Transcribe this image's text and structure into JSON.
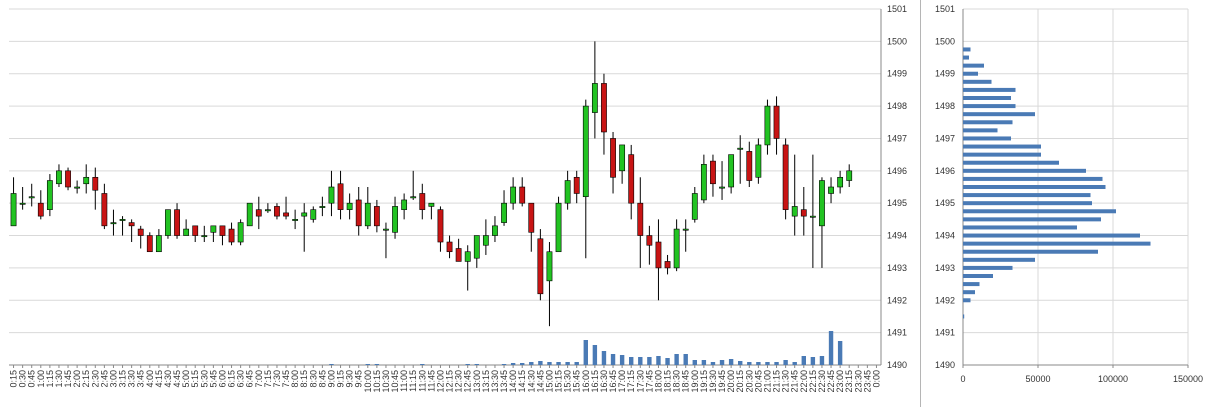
{
  "chart_data": [
    {
      "type": "candlestick",
      "y_axis_position": "right",
      "ylim": [
        1490,
        1501
      ],
      "y_ticks": [
        "1501",
        "1500",
        "1499",
        "1498",
        "1497",
        "1496",
        "1495",
        "1494",
        "1493",
        "1492",
        "1491",
        "1490"
      ],
      "grid": true,
      "colors": {
        "up": "#22c322",
        "down": "#c81414",
        "volume": "#4a7ab5",
        "grid": "#d9d9d9"
      },
      "x_labels": [
        "0:15",
        "0:30",
        "0:45",
        "1:00",
        "1:15",
        "1:30",
        "1:45",
        "2:00",
        "2:15",
        "2:30",
        "2:45",
        "3:00",
        "3:15",
        "3:30",
        "3:45",
        "4:00",
        "4:15",
        "4:30",
        "4:45",
        "5:00",
        "5:15",
        "5:30",
        "5:45",
        "6:00",
        "6:15",
        "6:30",
        "6:45",
        "7:00",
        "7:15",
        "7:30",
        "7:45",
        "8:00",
        "8:15",
        "8:30",
        "8:45",
        "9:00",
        "9:15",
        "9:30",
        "9:45",
        "10:00",
        "10:15",
        "10:30",
        "10:45",
        "11:00",
        "11:15",
        "11:30",
        "11:45",
        "12:00",
        "12:15",
        "12:30",
        "12:45",
        "13:00",
        "13:15",
        "13:30",
        "13:45",
        "14:00",
        "14:15",
        "14:30",
        "14:45",
        "15:00",
        "15:15",
        "15:30",
        "15:45",
        "16:00",
        "16:15",
        "16:30",
        "16:45",
        "17:00",
        "17:15",
        "17:30",
        "17:45",
        "18:00",
        "18:15",
        "18:30",
        "18:45",
        "19:00",
        "19:15",
        "19:30",
        "19:45",
        "20:00",
        "20:15",
        "20:30",
        "20:45",
        "21:00",
        "21:15",
        "21:30",
        "21:45",
        "22:00",
        "22:15",
        "22:30",
        "22:45",
        "23:00",
        "23:15",
        "23:30",
        "23:45",
        "0:00"
      ],
      "candles": [
        {
          "o": 1494.3,
          "h": 1495.8,
          "l": 1494.3,
          "c": 1495.3
        },
        {
          "o": 1495.0,
          "h": 1495.5,
          "l": 1494.8,
          "c": 1495.0
        },
        {
          "o": 1495.2,
          "h": 1495.6,
          "l": 1494.9,
          "c": 1495.2
        },
        {
          "o": 1495.0,
          "h": 1495.4,
          "l": 1494.5,
          "c": 1494.6
        },
        {
          "o": 1494.8,
          "h": 1495.9,
          "l": 1494.6,
          "c": 1495.7
        },
        {
          "o": 1495.6,
          "h": 1496.2,
          "l": 1495.5,
          "c": 1496.0
        },
        {
          "o": 1496.0,
          "h": 1496.1,
          "l": 1495.4,
          "c": 1495.5
        },
        {
          "o": 1495.5,
          "h": 1495.7,
          "l": 1495.3,
          "c": 1495.5
        },
        {
          "o": 1495.6,
          "h": 1496.2,
          "l": 1495.3,
          "c": 1495.8
        },
        {
          "o": 1495.8,
          "h": 1496.1,
          "l": 1494.8,
          "c": 1495.4
        },
        {
          "o": 1495.3,
          "h": 1495.6,
          "l": 1494.2,
          "c": 1494.3
        },
        {
          "o": 1494.4,
          "h": 1494.8,
          "l": 1494.0,
          "c": 1494.4
        },
        {
          "o": 1494.5,
          "h": 1494.6,
          "l": 1494.0,
          "c": 1494.5
        },
        {
          "o": 1494.4,
          "h": 1494.5,
          "l": 1493.8,
          "c": 1494.3
        },
        {
          "o": 1494.2,
          "h": 1494.3,
          "l": 1493.6,
          "c": 1494.0
        },
        {
          "o": 1494.0,
          "h": 1494.1,
          "l": 1493.5,
          "c": 1493.5
        },
        {
          "o": 1493.5,
          "h": 1494.2,
          "l": 1493.5,
          "c": 1494.0
        },
        {
          "o": 1494.0,
          "h": 1494.8,
          "l": 1493.9,
          "c": 1494.8
        },
        {
          "o": 1494.8,
          "h": 1495.0,
          "l": 1493.9,
          "c": 1494.0
        },
        {
          "o": 1494.0,
          "h": 1494.5,
          "l": 1494.0,
          "c": 1494.2
        },
        {
          "o": 1494.3,
          "h": 1494.3,
          "l": 1493.8,
          "c": 1494.0
        },
        {
          "o": 1494.0,
          "h": 1494.3,
          "l": 1493.8,
          "c": 1494.0
        },
        {
          "o": 1494.1,
          "h": 1494.3,
          "l": 1493.8,
          "c": 1494.3
        },
        {
          "o": 1494.3,
          "h": 1494.3,
          "l": 1493.7,
          "c": 1494.0
        },
        {
          "o": 1494.2,
          "h": 1494.4,
          "l": 1493.7,
          "c": 1493.8
        },
        {
          "o": 1493.8,
          "h": 1494.5,
          "l": 1493.7,
          "c": 1494.4
        },
        {
          "o": 1494.3,
          "h": 1495.0,
          "l": 1494.3,
          "c": 1495.0
        },
        {
          "o": 1494.8,
          "h": 1495.2,
          "l": 1494.2,
          "c": 1494.6
        },
        {
          "o": 1494.8,
          "h": 1495.0,
          "l": 1494.7,
          "c": 1494.8
        },
        {
          "o": 1494.9,
          "h": 1495.0,
          "l": 1494.5,
          "c": 1494.6
        },
        {
          "o": 1494.7,
          "h": 1495.2,
          "l": 1494.5,
          "c": 1494.6
        },
        {
          "o": 1494.5,
          "h": 1494.8,
          "l": 1494.2,
          "c": 1494.5
        },
        {
          "o": 1494.6,
          "h": 1495.0,
          "l": 1493.5,
          "c": 1494.7
        },
        {
          "o": 1494.5,
          "h": 1494.9,
          "l": 1494.4,
          "c": 1494.8
        },
        {
          "o": 1494.9,
          "h": 1495.2,
          "l": 1494.6,
          "c": 1494.9
        },
        {
          "o": 1495.0,
          "h": 1496.0,
          "l": 1494.6,
          "c": 1495.5
        },
        {
          "o": 1495.6,
          "h": 1496.0,
          "l": 1494.5,
          "c": 1494.8
        },
        {
          "o": 1494.8,
          "h": 1495.3,
          "l": 1494.5,
          "c": 1495.0
        },
        {
          "o": 1495.1,
          "h": 1495.5,
          "l": 1494.0,
          "c": 1494.3
        },
        {
          "o": 1494.3,
          "h": 1495.5,
          "l": 1494.2,
          "c": 1495.0
        },
        {
          "o": 1494.9,
          "h": 1495.1,
          "l": 1494.1,
          "c": 1494.3
        },
        {
          "o": 1494.2,
          "h": 1494.4,
          "l": 1493.3,
          "c": 1494.2
        },
        {
          "o": 1494.1,
          "h": 1495.2,
          "l": 1493.9,
          "c": 1494.9
        },
        {
          "o": 1494.8,
          "h": 1495.3,
          "l": 1494.5,
          "c": 1495.1
        },
        {
          "o": 1495.2,
          "h": 1496.0,
          "l": 1495.1,
          "c": 1495.2
        },
        {
          "o": 1495.3,
          "h": 1495.6,
          "l": 1494.5,
          "c": 1494.8
        },
        {
          "o": 1494.9,
          "h": 1495.0,
          "l": 1494.5,
          "c": 1495.0
        },
        {
          "o": 1494.8,
          "h": 1494.9,
          "l": 1493.5,
          "c": 1493.8
        },
        {
          "o": 1493.8,
          "h": 1494.0,
          "l": 1493.3,
          "c": 1493.5
        },
        {
          "o": 1493.6,
          "h": 1493.9,
          "l": 1493.2,
          "c": 1493.2
        },
        {
          "o": 1493.2,
          "h": 1493.7,
          "l": 1492.3,
          "c": 1493.5
        },
        {
          "o": 1493.3,
          "h": 1494.0,
          "l": 1493.0,
          "c": 1494.0
        },
        {
          "o": 1493.7,
          "h": 1494.5,
          "l": 1493.4,
          "c": 1494.0
        },
        {
          "o": 1494.0,
          "h": 1494.6,
          "l": 1493.8,
          "c": 1494.3
        },
        {
          "o": 1494.4,
          "h": 1495.4,
          "l": 1494.3,
          "c": 1495.0
        },
        {
          "o": 1495.0,
          "h": 1495.8,
          "l": 1494.8,
          "c": 1495.5
        },
        {
          "o": 1495.5,
          "h": 1495.8,
          "l": 1494.9,
          "c": 1495.0
        },
        {
          "o": 1495.0,
          "h": 1495.0,
          "l": 1493.5,
          "c": 1494.1
        },
        {
          "o": 1493.9,
          "h": 1494.2,
          "l": 1492.0,
          "c": 1492.2
        },
        {
          "o": 1492.6,
          "h": 1493.8,
          "l": 1491.2,
          "c": 1493.5
        },
        {
          "o": 1493.5,
          "h": 1495.2,
          "l": 1493.5,
          "c": 1495.0
        },
        {
          "o": 1495.0,
          "h": 1496.0,
          "l": 1494.8,
          "c": 1495.7
        },
        {
          "o": 1495.8,
          "h": 1496.0,
          "l": 1495.0,
          "c": 1495.3
        },
        {
          "o": 1495.2,
          "h": 1498.2,
          "l": 1493.3,
          "c": 1498.0
        },
        {
          "o": 1497.8,
          "h": 1500.0,
          "l": 1497.0,
          "c": 1498.7
        },
        {
          "o": 1498.7,
          "h": 1499.0,
          "l": 1496.5,
          "c": 1497.2
        },
        {
          "o": 1497.0,
          "h": 1497.2,
          "l": 1495.3,
          "c": 1495.8
        },
        {
          "o": 1496.0,
          "h": 1496.8,
          "l": 1495.6,
          "c": 1496.8
        },
        {
          "o": 1496.5,
          "h": 1496.8,
          "l": 1494.5,
          "c": 1495.0
        },
        {
          "o": 1495.0,
          "h": 1495.8,
          "l": 1493.0,
          "c": 1494.0
        },
        {
          "o": 1494.0,
          "h": 1494.3,
          "l": 1493.1,
          "c": 1493.7
        },
        {
          "o": 1493.8,
          "h": 1494.5,
          "l": 1492.0,
          "c": 1493.0
        },
        {
          "o": 1493.2,
          "h": 1493.4,
          "l": 1492.8,
          "c": 1493.0
        },
        {
          "o": 1493.0,
          "h": 1494.5,
          "l": 1492.9,
          "c": 1494.2
        },
        {
          "o": 1494.2,
          "h": 1494.5,
          "l": 1493.5,
          "c": 1494.2
        },
        {
          "o": 1494.5,
          "h": 1495.5,
          "l": 1494.4,
          "c": 1495.3
        },
        {
          "o": 1495.1,
          "h": 1496.5,
          "l": 1495.0,
          "c": 1496.2
        },
        {
          "o": 1496.3,
          "h": 1496.5,
          "l": 1495.2,
          "c": 1495.6
        },
        {
          "o": 1495.5,
          "h": 1496.3,
          "l": 1495.1,
          "c": 1495.5
        },
        {
          "o": 1495.5,
          "h": 1496.5,
          "l": 1495.3,
          "c": 1496.5
        },
        {
          "o": 1496.7,
          "h": 1497.1,
          "l": 1495.6,
          "c": 1496.7
        },
        {
          "o": 1496.6,
          "h": 1496.9,
          "l": 1495.5,
          "c": 1495.7
        },
        {
          "o": 1495.8,
          "h": 1497.0,
          "l": 1495.6,
          "c": 1496.8
        },
        {
          "o": 1496.8,
          "h": 1498.2,
          "l": 1496.5,
          "c": 1498.0
        },
        {
          "o": 1498.0,
          "h": 1498.3,
          "l": 1496.5,
          "c": 1497.0
        },
        {
          "o": 1496.8,
          "h": 1497.0,
          "l": 1494.5,
          "c": 1494.8
        },
        {
          "o": 1494.6,
          "h": 1496.5,
          "l": 1494.0,
          "c": 1494.9
        },
        {
          "o": 1494.8,
          "h": 1495.5,
          "l": 1494.0,
          "c": 1494.6
        },
        {
          "o": 1494.6,
          "h": 1496.5,
          "l": 1493.0,
          "c": 1494.6
        },
        {
          "o": 1494.3,
          "h": 1495.8,
          "l": 1493.0,
          "c": 1495.7
        },
        {
          "o": 1495.3,
          "h": 1495.8,
          "l": 1495.0,
          "c": 1495.5
        },
        {
          "o": 1495.5,
          "h": 1496.0,
          "l": 1495.3,
          "c": 1495.8
        },
        {
          "o": 1495.7,
          "h": 1496.2,
          "l": 1495.5,
          "c": 1496.0
        }
      ],
      "volume_relative": [
        0,
        0,
        0,
        0,
        0,
        0,
        0,
        0,
        0,
        0,
        0,
        0,
        0,
        0,
        0,
        0,
        0,
        0,
        0,
        0,
        0,
        0,
        0,
        0,
        0,
        0,
        0,
        0,
        0,
        0,
        0,
        0,
        0,
        0,
        0,
        0.04,
        0,
        0,
        0,
        0.04,
        0.04,
        0,
        0,
        0,
        0,
        0.04,
        0,
        0,
        0,
        0,
        0.04,
        0.04,
        0,
        0,
        0.04,
        0.08,
        0.08,
        0.12,
        0.16,
        0.12,
        0.12,
        0.12,
        0.12,
        1.0,
        0.8,
        0.56,
        0.44,
        0.4,
        0.32,
        0.32,
        0.32,
        0.36,
        0.28,
        0.44,
        0.44,
        0.2,
        0.2,
        0.12,
        0.2,
        0.24,
        0.16,
        0.12,
        0.12,
        0.12,
        0.12,
        0.2,
        0.12,
        0.36,
        0.32,
        0.36,
        1.36,
        0.96,
        0,
        0,
        0,
        0
      ]
    },
    {
      "type": "bar",
      "orientation": "horizontal",
      "y_axis_position": "left",
      "ylim": [
        1490,
        1501
      ],
      "y_ticks": [
        "1501",
        "1500",
        "1499",
        "1498",
        "1497",
        "1496",
        "1495",
        "1494",
        "1493",
        "1492",
        "1491",
        "1490"
      ],
      "xlim": [
        0,
        150000
      ],
      "x_ticks": [
        "0",
        "50000",
        "100000",
        "150000"
      ],
      "grid": true,
      "color": "#4a7ab5",
      "bars": [
        {
          "y": 1491.5,
          "v": 800
        },
        {
          "y": 1492.0,
          "v": 5000
        },
        {
          "y": 1492.25,
          "v": 8000
        },
        {
          "y": 1492.5,
          "v": 11000
        },
        {
          "y": 1492.75,
          "v": 20000
        },
        {
          "y": 1493.0,
          "v": 33000
        },
        {
          "y": 1493.25,
          "v": 48000
        },
        {
          "y": 1493.5,
          "v": 90000
        },
        {
          "y": 1493.75,
          "v": 125000
        },
        {
          "y": 1494.0,
          "v": 118000
        },
        {
          "y": 1494.25,
          "v": 76000
        },
        {
          "y": 1494.5,
          "v": 92000
        },
        {
          "y": 1494.75,
          "v": 102000
        },
        {
          "y": 1495.0,
          "v": 86000
        },
        {
          "y": 1495.25,
          "v": 85000
        },
        {
          "y": 1495.5,
          "v": 95000
        },
        {
          "y": 1495.75,
          "v": 93000
        },
        {
          "y": 1496.0,
          "v": 82000
        },
        {
          "y": 1496.25,
          "v": 64000
        },
        {
          "y": 1496.5,
          "v": 52000
        },
        {
          "y": 1496.75,
          "v": 52000
        },
        {
          "y": 1497.0,
          "v": 32000
        },
        {
          "y": 1497.25,
          "v": 23000
        },
        {
          "y": 1497.5,
          "v": 33000
        },
        {
          "y": 1497.75,
          "v": 48000
        },
        {
          "y": 1498.0,
          "v": 35000
        },
        {
          "y": 1498.25,
          "v": 32000
        },
        {
          "y": 1498.5,
          "v": 35000
        },
        {
          "y": 1498.75,
          "v": 19000
        },
        {
          "y": 1499.0,
          "v": 10000
        },
        {
          "y": 1499.25,
          "v": 14000
        },
        {
          "y": 1499.5,
          "v": 4000
        },
        {
          "y": 1499.75,
          "v": 5000
        }
      ]
    }
  ]
}
